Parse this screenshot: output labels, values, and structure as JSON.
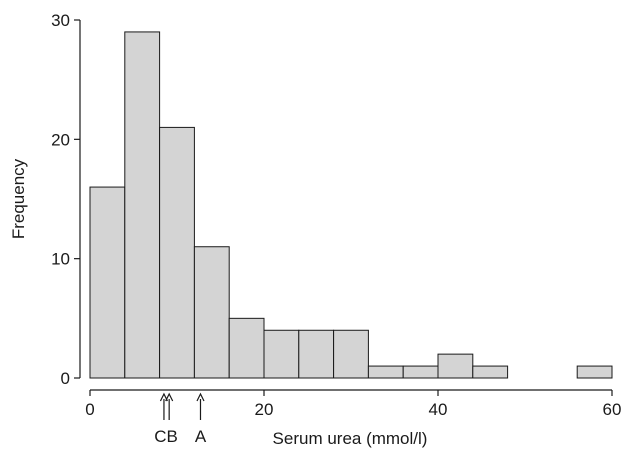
{
  "chart_data": {
    "type": "bar",
    "subtype": "histogram",
    "title": "",
    "xlabel": "Serum urea (mmol/l)",
    "ylabel": "Frequency",
    "xlim": [
      0,
      60
    ],
    "ylim": [
      0,
      30
    ],
    "x_ticks": [
      0,
      20,
      40,
      60
    ],
    "y_ticks": [
      0,
      10,
      20,
      30
    ],
    "bin_width": 4,
    "bins": [
      {
        "start": 0,
        "end": 4,
        "value": 16
      },
      {
        "start": 4,
        "end": 8,
        "value": 29
      },
      {
        "start": 8,
        "end": 12,
        "value": 21
      },
      {
        "start": 12,
        "end": 16,
        "value": 11
      },
      {
        "start": 16,
        "end": 20,
        "value": 5
      },
      {
        "start": 20,
        "end": 24,
        "value": 4
      },
      {
        "start": 24,
        "end": 28,
        "value": 4
      },
      {
        "start": 28,
        "end": 32,
        "value": 4
      },
      {
        "start": 32,
        "end": 36,
        "value": 1
      },
      {
        "start": 36,
        "end": 40,
        "value": 1
      },
      {
        "start": 40,
        "end": 44,
        "value": 2
      },
      {
        "start": 44,
        "end": 48,
        "value": 1
      },
      {
        "start": 56,
        "end": 60,
        "value": 1
      }
    ],
    "markers": [
      {
        "label": "C",
        "x": 8.5
      },
      {
        "label": "B",
        "x": 9.1
      },
      {
        "label": "A",
        "x": 12.7
      }
    ],
    "grid": false,
    "bar_fill": "#d4d4d4",
    "bar_stroke": "#1a1a1a"
  }
}
